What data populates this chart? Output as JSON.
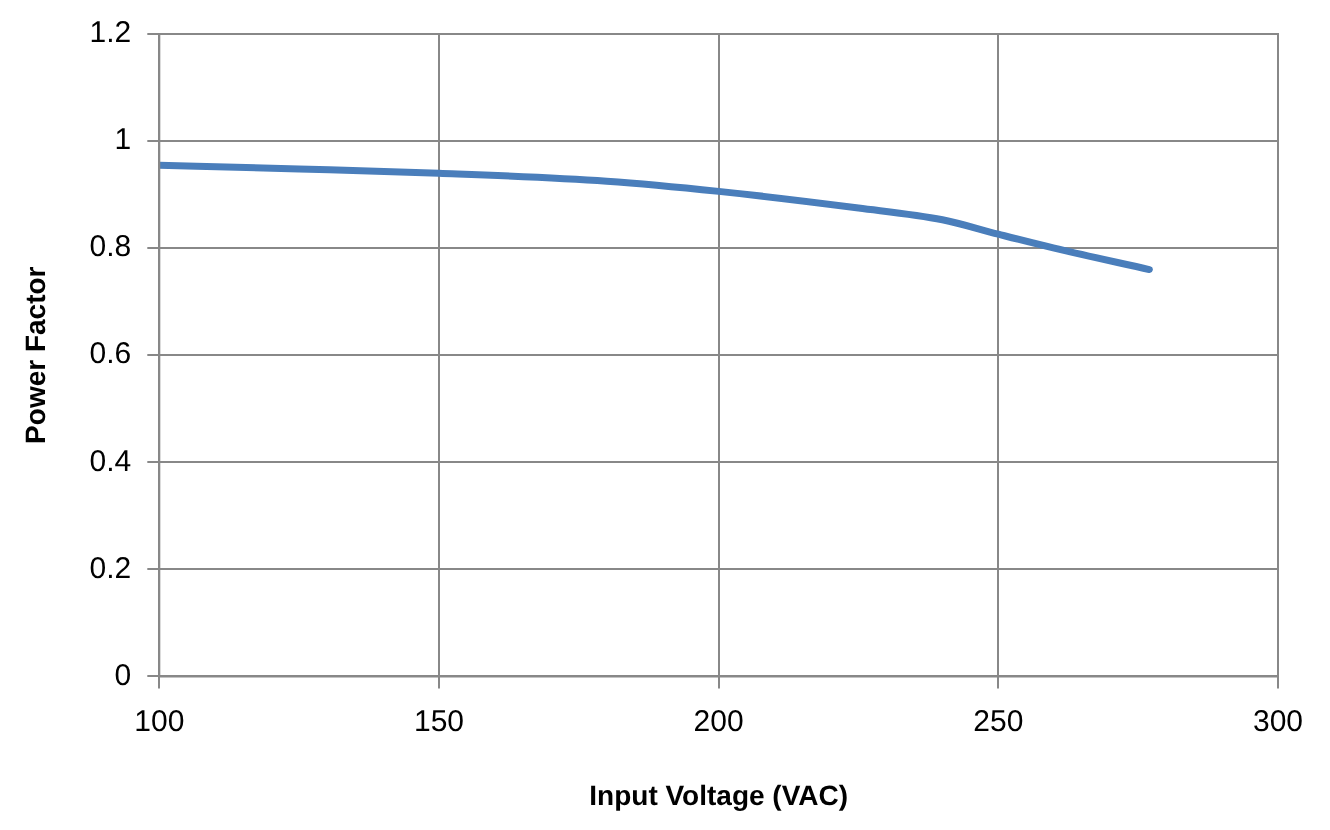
{
  "chart_data": {
    "type": "line",
    "xlabel": "Input Voltage (VAC)",
    "ylabel": "Power Factor",
    "x": [
      100,
      125,
      150,
      180,
      200,
      225,
      240,
      250,
      260,
      277
    ],
    "series": [
      {
        "color": "#4a7ebb",
        "values": [
          0.955,
          0.948,
          0.94,
          0.925,
          0.906,
          0.875,
          0.853,
          0.826,
          0.8,
          0.76
        ]
      }
    ],
    "xlim": [
      100,
      300
    ],
    "xticks": [
      100,
      150,
      200,
      250,
      300
    ],
    "ylim": [
      0,
      1.2
    ],
    "yticks": [
      0,
      0.2,
      0.4,
      0.6,
      0.8,
      1,
      1.2
    ],
    "grid": true,
    "legend": false,
    "marker": "none",
    "line_style": "solid"
  }
}
